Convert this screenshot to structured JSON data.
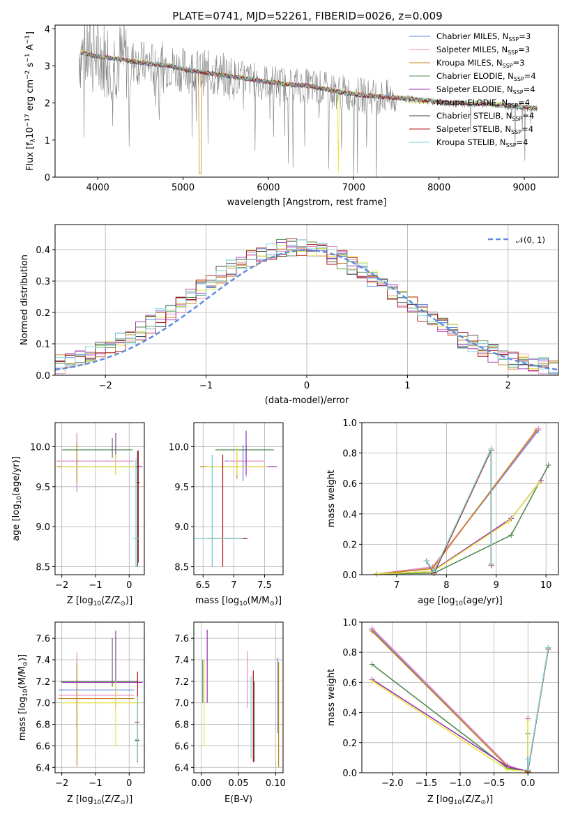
{
  "title": "PLATE=0741, MJD=52261, FIBERID=0026, z=0.009",
  "palette": [
    "#5f8ae0",
    "#e88ac6",
    "#c8801a",
    "#4f8a4f",
    "#9b30b0",
    "#e6e640",
    "#404040",
    "#b01010",
    "#7fd4d4"
  ],
  "colors": {
    "data": "#808080",
    "normal": "#5f8ae0"
  },
  "chart_data": [
    {
      "id": "spectrum",
      "type": "line",
      "xlabel": "wavelength [Angstrom, rest frame]",
      "ylabel": "Flux [f",
      "ylabel_sub": "λ",
      "ylabel_rest": "10",
      "ylabel_sup": "−17",
      "ylabel_end": " erg cm",
      "ylabel_sup2": "−2",
      "ylabel_end2": " s",
      "ylabel_sup3": "−1",
      "ylabel_end3": " A",
      "ylabel_sup4": "−1",
      "ylabel_close": "]",
      "xlim": [
        3500,
        9400
      ],
      "ylim": [
        0,
        4.1
      ],
      "xticks": [
        4000,
        5000,
        6000,
        7000,
        8000,
        9000
      ],
      "yticks": [
        0,
        1,
        2,
        3,
        4
      ],
      "legend_position": "top-right",
      "legend": [
        {
          "name": "Chabrier MILES, N",
          "sub": "SSP",
          "eq": "=3"
        },
        {
          "name": "Salpeter MILES, N",
          "sub": "SSP",
          "eq": "=3"
        },
        {
          "name": "Kroupa MILES, N",
          "sub": "SSP",
          "eq": "=3"
        },
        {
          "name": "Chabrier ELODIE, N",
          "sub": "SSP",
          "eq": "=4"
        },
        {
          "name": "Salpeter ELODIE, N",
          "sub": "SSP",
          "eq": "=4"
        },
        {
          "name": "Kroupa ELODIE, N",
          "sub": "SSP",
          "eq": "=4"
        },
        {
          "name": "Chabrier STELIB, N",
          "sub": "SSP",
          "eq": "=4"
        },
        {
          "name": "Salpeter STELIB, N",
          "sub": "SSP",
          "eq": "=4"
        },
        {
          "name": "Kroupa STELIB, N",
          "sub": "SSP",
          "eq": "=4"
        }
      ],
      "continuum": {
        "x": [
          3800,
          4000,
          4300,
          4600,
          4850,
          5000,
          5300,
          5600,
          5900,
          6200,
          6500,
          6800,
          7100,
          7400,
          7700,
          8000,
          8300,
          8600,
          8900,
          9150
        ],
        "y": [
          3.35,
          3.25,
          3.15,
          3.05,
          3.0,
          2.9,
          2.8,
          2.7,
          2.6,
          2.5,
          2.45,
          2.3,
          2.2,
          2.15,
          2.1,
          2.02,
          1.98,
          1.97,
          1.9,
          1.85
        ]
      }
    },
    {
      "id": "residuals",
      "type": "step",
      "xlabel": "(data-model)/error",
      "ylabel": "Normed distribution",
      "xlim": [
        -2.5,
        2.5
      ],
      "ylim": [
        0,
        0.48
      ],
      "xticks": [
        -2,
        -1,
        0,
        1,
        2
      ],
      "yticks": [
        0,
        0.1,
        0.2,
        0.3,
        0.4
      ],
      "legend_position": "top-right",
      "normal_label": "𝒩(0, 1)",
      "bin_width": 0.1
    },
    {
      "id": "age-vs-Z",
      "type": "errorbar",
      "xlabel": "Z [log",
      "xlabel_sub": "10",
      "xlabel_rest": "(Z/Z",
      "xlabel_sub2": "⊙",
      "xlabel_end": ")]",
      "ylabel": "age  [log",
      "ylabel_sub": "10",
      "ylabel_rest": "(age/yr)]",
      "xlim": [
        -2.2,
        0.45
      ],
      "ylim": [
        8.4,
        10.3
      ],
      "xticks": [
        -2,
        -1,
        0
      ],
      "yticks": [
        8.5,
        9.0,
        9.5,
        10.0
      ]
    },
    {
      "id": "age-vs-mass",
      "type": "errorbar",
      "xlabel": "mass [log",
      "xlabel_sub": "10",
      "xlabel_rest": "(M/M",
      "xlabel_sub2": "⊙",
      "xlabel_end": ")]",
      "xlim": [
        6.35,
        7.8
      ],
      "ylim": [
        8.4,
        10.3
      ],
      "xticks": [
        6.5,
        7.0,
        7.5
      ],
      "yticks": [
        8.5,
        9.0,
        9.5,
        10.0
      ]
    },
    {
      "id": "weight-vs-age",
      "type": "line",
      "xlabel": "age  [log",
      "xlabel_sub": "10",
      "xlabel_rest": "(age/yr)]",
      "ylabel": "mass weight",
      "xlim": [
        6.3,
        10.25
      ],
      "ylim": [
        0,
        1.0
      ],
      "xticks": [
        7,
        8,
        9,
        10
      ],
      "yticks": [
        0.0,
        0.2,
        0.4,
        0.6,
        0.8,
        1.0
      ],
      "series": [
        {
          "x": [
            6.6,
            7.72,
            9.85
          ],
          "y": [
            0.005,
            0.05,
            0.95
          ]
        },
        {
          "x": [
            6.6,
            7.72,
            9.85
          ],
          "y": [
            0.005,
            0.05,
            0.96
          ]
        },
        {
          "x": [
            6.6,
            7.72,
            9.8
          ],
          "y": [
            0.005,
            0.04,
            0.95
          ]
        },
        {
          "x": [
            6.6,
            7.75,
            9.3,
            10.05
          ],
          "y": [
            0.005,
            0.01,
            0.26,
            0.72
          ]
        },
        {
          "x": [
            6.6,
            7.7,
            9.3,
            9.9
          ],
          "y": [
            0.005,
            0.02,
            0.37,
            0.62
          ]
        },
        {
          "x": [
            6.6,
            7.72,
            9.25,
            9.88
          ],
          "y": [
            0.005,
            0.02,
            0.35,
            0.61
          ]
        },
        {
          "x": [
            7.6,
            7.75,
            8.9,
            8.9
          ],
          "y": [
            0.09,
            0.01,
            0.83,
            0.07
          ]
        },
        {
          "x": [
            7.6,
            7.75,
            8.9,
            8.9
          ],
          "y": [
            0.09,
            0.01,
            0.82,
            0.06
          ]
        },
        {
          "x": [
            7.6,
            7.75,
            8.9,
            8.9
          ],
          "y": [
            0.09,
            0.02,
            0.83,
            0.07
          ]
        }
      ]
    },
    {
      "id": "mass-vs-Z",
      "type": "errorbar",
      "xlabel": "Z [log",
      "xlabel_sub": "10",
      "xlabel_rest": "(Z/Z",
      "xlabel_sub2": "⊙",
      "xlabel_end": ")]",
      "ylabel": "mass [log",
      "ylabel_sub": "10",
      "ylabel_rest": "(M/M",
      "ylabel_sub2": "⊙",
      "ylabel_end": ")]",
      "xlim": [
        -2.2,
        0.45
      ],
      "ylim": [
        6.35,
        7.75
      ],
      "xticks": [
        -2,
        -1,
        0
      ],
      "yticks": [
        6.4,
        6.6,
        6.8,
        7.0,
        7.2,
        7.4,
        7.6
      ]
    },
    {
      "id": "mass-vs-EBV",
      "type": "errorbar",
      "xlabel": "E(B-V)",
      "xlim": [
        -0.01,
        0.11
      ],
      "ylim": [
        6.35,
        7.75
      ],
      "xticks": [
        0.0,
        0.05,
        0.1
      ],
      "xticklabels": [
        "0.00",
        "0.05",
        "0.10"
      ],
      "yticks": [
        6.4,
        6.6,
        6.8,
        7.0,
        7.2,
        7.4,
        7.6
      ]
    },
    {
      "id": "weight-vs-Z",
      "type": "line",
      "xlabel": "Z [log",
      "xlabel_sub": "10",
      "xlabel_rest": "(Z/Z",
      "xlabel_sub2": "⊙",
      "xlabel_end": ")]",
      "ylabel": "mass weight",
      "xlim": [
        -2.45,
        0.45
      ],
      "ylim": [
        0,
        1.0
      ],
      "xticks": [
        -2.0,
        -1.5,
        -1.0,
        -0.5,
        0.0
      ],
      "xticklabels": [
        "−2.0",
        "−1.5",
        "−1.0",
        "−0.5",
        "0.0"
      ],
      "yticks": [
        0.0,
        0.2,
        0.4,
        0.6,
        0.8,
        1.0
      ],
      "series": [
        {
          "x": [
            -2.3,
            -0.3,
            0.0
          ],
          "y": [
            0.95,
            0.04,
            0.005
          ]
        },
        {
          "x": [
            -2.3,
            -0.3,
            0.0
          ],
          "y": [
            0.96,
            0.05,
            0.005
          ]
        },
        {
          "x": [
            -2.3,
            -0.3,
            0.0
          ],
          "y": [
            0.94,
            0.04,
            0.005
          ]
        },
        {
          "x": [
            -2.3,
            -0.3,
            0.0,
            0.0
          ],
          "y": [
            0.72,
            0.03,
            0.01,
            0.26
          ]
        },
        {
          "x": [
            -2.3,
            -0.3,
            0.0,
            0.0
          ],
          "y": [
            0.62,
            0.04,
            0.01,
            0.36
          ]
        },
        {
          "x": [
            -2.3,
            -0.3,
            0.0,
            0.0
          ],
          "y": [
            0.61,
            0.02,
            0.01,
            0.35
          ]
        },
        {
          "x": [
            0.0,
            0.0,
            0.3
          ],
          "y": [
            0.09,
            0.01,
            0.83
          ]
        },
        {
          "x": [
            0.0,
            0.0,
            0.3
          ],
          "y": [
            0.09,
            0.01,
            0.82
          ]
        },
        {
          "x": [
            0.0,
            0.0,
            0.3
          ],
          "y": [
            0.09,
            0.02,
            0.83
          ]
        }
      ]
    }
  ],
  "errorbars": {
    "age_Z": [
      {
        "x": -1.55,
        "y": 9.82,
        "xe": [
          0.6,
          1.7
        ],
        "ye": [
          0.38,
          0.35
        ],
        "c": 0
      },
      {
        "x": -1.55,
        "y": 9.82,
        "xe": [
          0.6,
          1.7
        ],
        "ye": [
          0.36,
          0.35
        ],
        "c": 1
      },
      {
        "x": -1.55,
        "y": 9.75,
        "xe": [
          0.6,
          1.7
        ],
        "ye": [
          0.2,
          0.3
        ],
        "c": 2
      },
      {
        "x": -0.5,
        "y": 9.96,
        "xe": [
          1.5,
          0.6
        ],
        "ye": [
          0.1,
          0.15
        ],
        "c": 3
      },
      {
        "x": -0.4,
        "y": 9.75,
        "xe": [
          1.6,
          0.8
        ],
        "ye": [
          0.1,
          0.42
        ],
        "c": 4
      },
      {
        "x": -0.4,
        "y": 9.75,
        "xe": [
          1.6,
          0.6
        ],
        "ye": [
          0.1,
          0.15
        ],
        "c": 5
      },
      {
        "x": 0.25,
        "y": 8.85,
        "xe": [
          0.05,
          0.05
        ],
        "ye": [
          0.35,
          1.1
        ],
        "c": 6
      },
      {
        "x": 0.27,
        "y": 9.55,
        "xe": [
          0.05,
          0.05
        ],
        "ye": [
          1.0,
          0.4
        ],
        "c": 7
      },
      {
        "x": 0.2,
        "y": 8.85,
        "xe": [
          0.1,
          0.1
        ],
        "ye": [
          0.35,
          1.0
        ],
        "c": 8
      }
    ],
    "age_mass": [
      {
        "x": 7.15,
        "y": 9.82,
        "xe": [
          0.3,
          0.35
        ],
        "ye": [
          0.25,
          0.2
        ],
        "c": 0
      },
      {
        "x": 7.2,
        "y": 9.82,
        "xe": [
          0.3,
          0.3
        ],
        "ye": [
          0.2,
          0.2
        ],
        "c": 1
      },
      {
        "x": 7.05,
        "y": 9.75,
        "xe": [
          0.6,
          0.5
        ],
        "ye": [
          0.15,
          0.2
        ],
        "c": 2
      },
      {
        "x": 7.2,
        "y": 9.96,
        "xe": [
          0.5,
          0.45
        ],
        "ye": [
          0.2,
          0.05
        ],
        "c": 3
      },
      {
        "x": 7.2,
        "y": 9.75,
        "xe": [
          0.6,
          0.5
        ],
        "ye": [
          0.1,
          0.45
        ],
        "c": 4
      },
      {
        "x": 7.05,
        "y": 9.75,
        "xe": [
          0.5,
          0.5
        ],
        "ye": [
          0.1,
          0.25
        ],
        "c": 5
      },
      {
        "x": 6.65,
        "y": 8.85,
        "xe": [
          0.1,
          0.5
        ],
        "ye": [
          0.35,
          1.05
        ],
        "c": 6
      },
      {
        "x": 6.82,
        "y": 8.85,
        "xe": [
          0.2,
          0.4
        ],
        "ye": [
          0.35,
          1.05
        ],
        "c": 7
      },
      {
        "x": 6.65,
        "y": 8.85,
        "xe": [
          0.3,
          0.5
        ],
        "ye": [
          0.35,
          1.05
        ],
        "c": 8
      }
    ],
    "mass_Z": [
      {
        "x": -1.55,
        "y": 7.12,
        "xe": [
          0.55,
          1.7
        ],
        "ye": [
          0.15,
          0.3
        ],
        "c": 0
      },
      {
        "x": -1.55,
        "y": 7.07,
        "xe": [
          0.55,
          1.7
        ],
        "ye": [
          0.3,
          0.4
        ],
        "c": 1
      },
      {
        "x": -1.55,
        "y": 7.04,
        "xe": [
          0.55,
          1.7
        ],
        "ye": [
          0.63,
          0.33
        ],
        "c": 2
      },
      {
        "x": -0.5,
        "y": 7.2,
        "xe": [
          1.55,
          0.75
        ],
        "ye": [
          0.05,
          0.4
        ],
        "c": 3
      },
      {
        "x": -0.4,
        "y": 7.19,
        "xe": [
          1.6,
          0.8
        ],
        "ye": [
          0.25,
          0.48
        ],
        "c": 4
      },
      {
        "x": -0.4,
        "y": 7.0,
        "xe": [
          1.6,
          0.7
        ],
        "ye": [
          0.4,
          0.2
        ],
        "c": 5
      },
      {
        "x": 0.25,
        "y": 6.65,
        "xe": [
          0.08,
          0.05
        ],
        "ye": [
          0.2,
          0.2
        ],
        "c": 6
      },
      {
        "x": 0.25,
        "y": 6.82,
        "xe": [
          0.08,
          0.05
        ],
        "ye": [
          0.35,
          0.47
        ],
        "c": 7
      },
      {
        "x": 0.25,
        "y": 6.66,
        "xe": [
          0.08,
          0.05
        ],
        "ye": [
          0.2,
          0.4
        ],
        "c": 8
      }
    ],
    "mass_EBV": [
      {
        "x": 0.103,
        "y": 7.12,
        "xe": [
          0,
          0
        ],
        "ye": [
          0.4,
          0.3
        ],
        "c": 0
      },
      {
        "x": 0.062,
        "y": 7.2,
        "xe": [
          0,
          0
        ],
        "ye": [
          0.25,
          0.28
        ],
        "c": 1
      },
      {
        "x": 0.104,
        "y": 7.0,
        "xe": [
          0,
          0
        ],
        "ye": [
          0.6,
          0.38
        ],
        "c": 2
      },
      {
        "x": 0.002,
        "y": 7.2,
        "xe": [
          0,
          0
        ],
        "ye": [
          0.2,
          0.2
        ],
        "c": 3
      },
      {
        "x": 0.008,
        "y": 7.3,
        "xe": [
          0,
          0
        ],
        "ye": [
          0.3,
          0.38
        ],
        "c": 4
      },
      {
        "x": 0.004,
        "y": 7.0,
        "xe": [
          0,
          0
        ],
        "ye": [
          0.4,
          0.4
        ],
        "c": 5
      },
      {
        "x": 0.071,
        "y": 6.9,
        "xe": [
          0,
          0
        ],
        "ye": [
          0.45,
          0.3
        ],
        "c": 6
      },
      {
        "x": 0.07,
        "y": 6.85,
        "xe": [
          0,
          0
        ],
        "ye": [
          0.4,
          0.45
        ],
        "c": 7
      },
      {
        "x": 0.067,
        "y": 6.95,
        "xe": [
          0,
          0
        ],
        "ye": [
          0.47,
          0.3
        ],
        "c": 8
      }
    ]
  }
}
